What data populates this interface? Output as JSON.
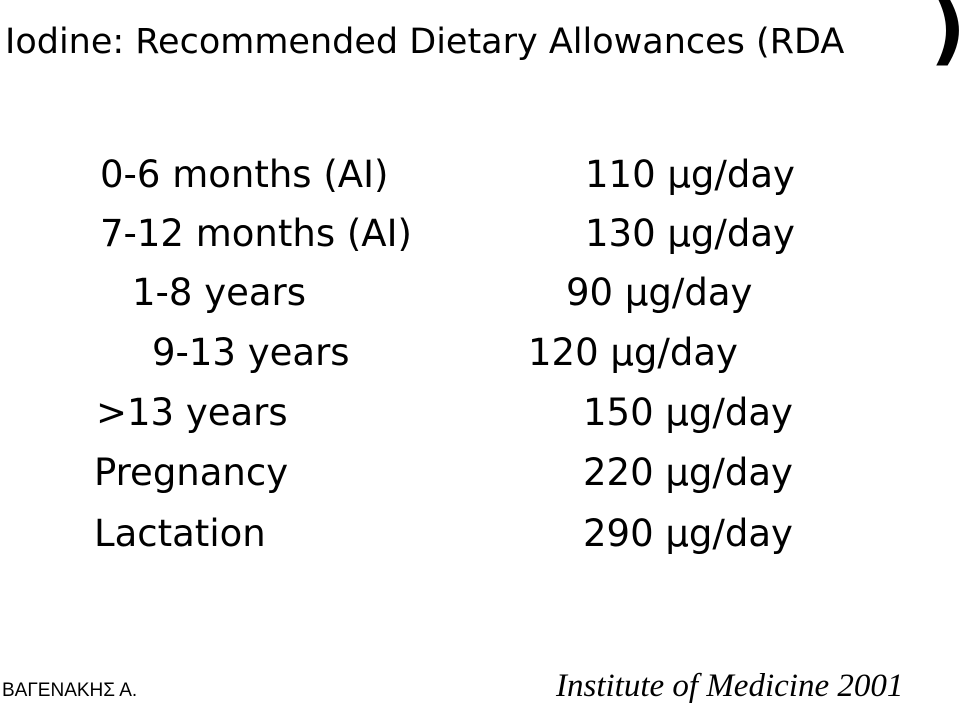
{
  "slide": {
    "title": "Iodine: Recommended Dietary Allowances (RDA",
    "title_close": ")"
  },
  "rows": [
    {
      "label": "0-6 months (AI)",
      "value": "110 µg/day"
    },
    {
      "label": "7-12 months (AI)",
      "value": "130 µg/day"
    },
    {
      "label": "1-8 years",
      "value": "90 µg/day"
    },
    {
      "label": "9-13 years",
      "value": "120 µg/day"
    },
    {
      "label": ">13 years",
      "value": "150 µg/day"
    },
    {
      "label": "Pregnancy",
      "value": "220 µg/day"
    },
    {
      "label": "Lactation",
      "value": "290 µg/day"
    }
  ],
  "footer": {
    "author": "ΒΑΓΕΝΑΚΗΣ Α.",
    "source": "Institute of Medicine 2001"
  }
}
